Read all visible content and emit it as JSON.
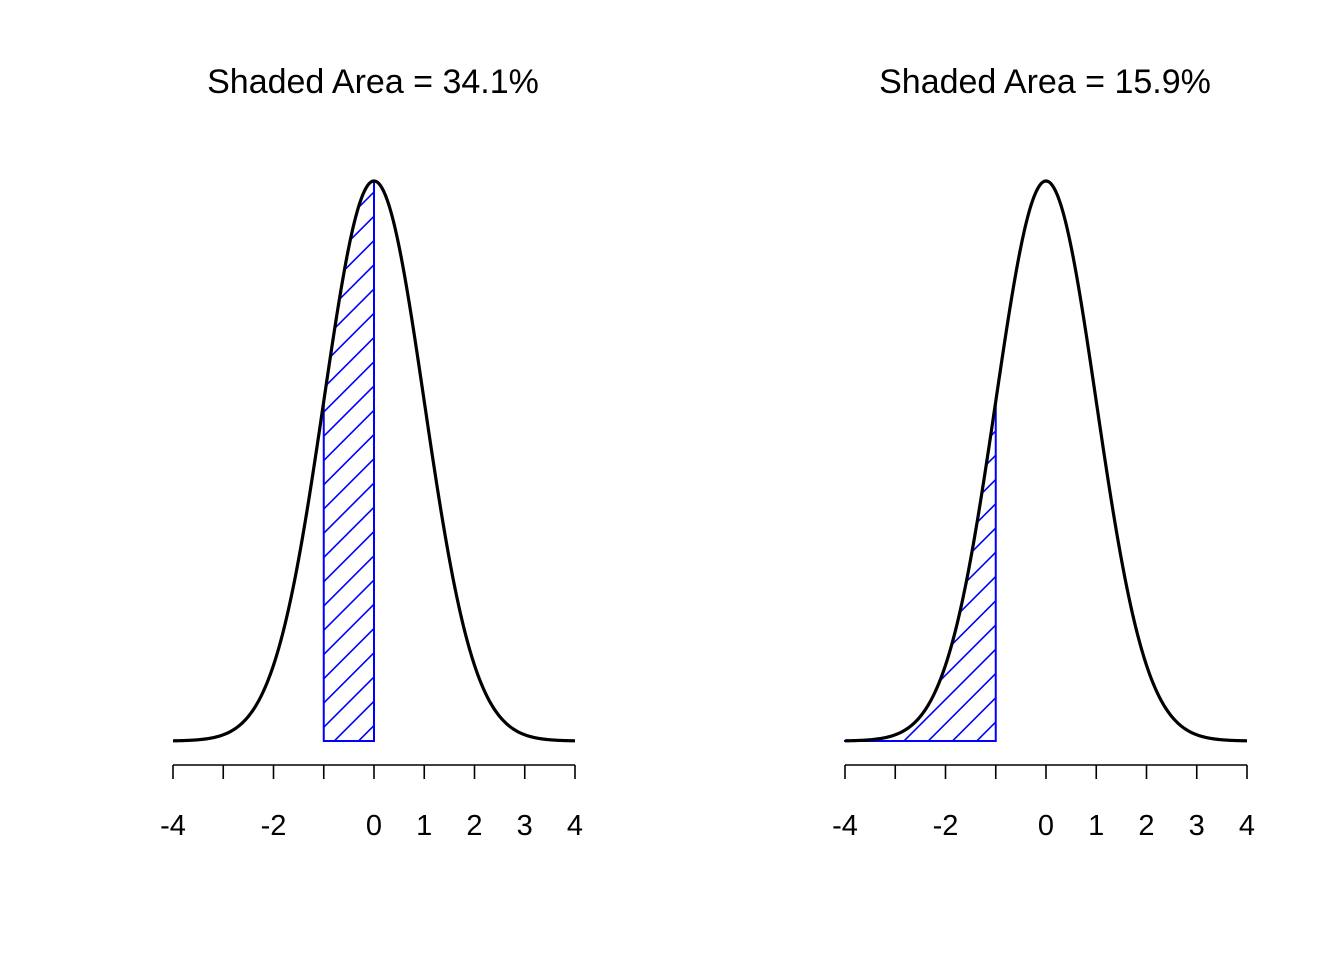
{
  "colors": {
    "curve": "#000000",
    "shade": "#0000ff",
    "axis": "#000000",
    "background": "#ffffff"
  },
  "chart_data": [
    {
      "type": "area",
      "title": "Shaded Area = 34.1%",
      "distribution": "standard normal density",
      "xlim": [
        -4,
        4
      ],
      "ticks": [
        -4,
        -3,
        -2,
        -1,
        0,
        1,
        2,
        3,
        4
      ],
      "tick_labels": [
        "-4",
        "",
        "-2",
        "",
        "0",
        "1",
        "2",
        "3",
        "4"
      ],
      "shaded_interval": [
        -1,
        0
      ],
      "shaded_area_percent": 34.1,
      "shade_style": "diagonal hatch"
    },
    {
      "type": "area",
      "title": "Shaded Area = 15.9%",
      "distribution": "standard normal density",
      "xlim": [
        -4,
        4
      ],
      "ticks": [
        -4,
        -3,
        -2,
        -1,
        0,
        1,
        2,
        3,
        4
      ],
      "tick_labels": [
        "-4",
        "",
        "-2",
        "",
        "0",
        "1",
        "2",
        "3",
        "4"
      ],
      "shaded_interval": [
        -4,
        -1
      ],
      "shaded_area_percent": 15.9,
      "shade_style": "diagonal hatch"
    }
  ]
}
